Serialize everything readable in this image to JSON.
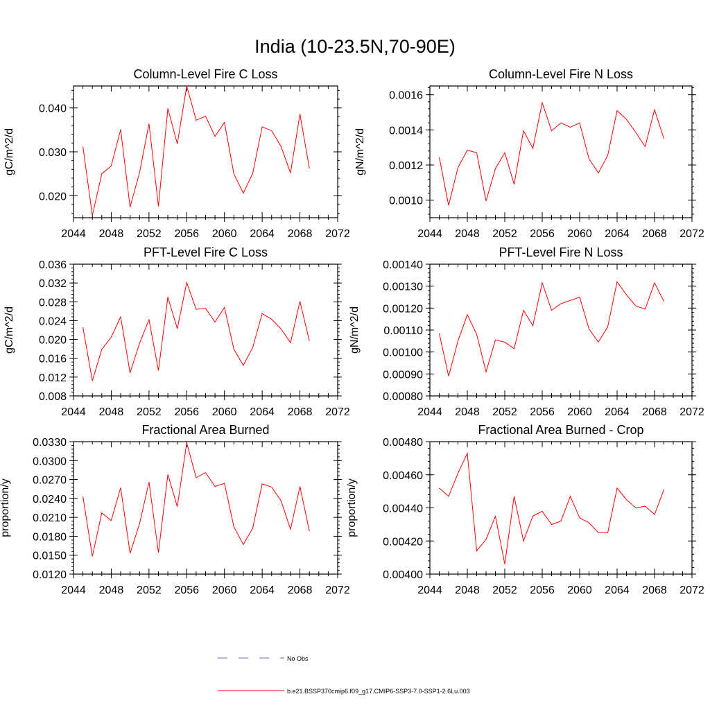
{
  "figure": {
    "title": "India (10-23.5N,70-90E)"
  },
  "legend": {
    "placement": "bottom-center",
    "entries": [
      {
        "label": "No Obs",
        "color": "#6a6ab0",
        "style": "dashed"
      },
      {
        "label": "b.e21.BSSP370cmip6.f09_g17.CMIP6-SSP3-7.0-SSP1-2.6Lu.003",
        "color": "#ff0000",
        "style": "solid"
      }
    ]
  },
  "chart_data": [
    {
      "type": "line",
      "title": "Column-Level Fire C Loss",
      "ylabel": "gC/m^2/d",
      "xlim": [
        2044,
        2072
      ],
      "ylim": [
        0.015,
        0.045
      ],
      "xticks": [
        "2044",
        "2048",
        "2052",
        "2056",
        "2060",
        "2064",
        "2068",
        "2072"
      ],
      "yticks": [
        0.02,
        0.03,
        0.04
      ],
      "ytick_labels": [
        "0.020",
        "0.030",
        "0.040"
      ],
      "series": [
        {
          "color": "#ff0000",
          "x": [
            2045,
            2046,
            2047,
            2048,
            2049,
            2050,
            2051,
            2052,
            2053,
            2054,
            2055,
            2056,
            2057,
            2058,
            2059,
            2060,
            2061,
            2062,
            2063,
            2064,
            2065,
            2066,
            2067,
            2068,
            2069
          ],
          "values": [
            0.0312,
            0.0155,
            0.025,
            0.0268,
            0.0351,
            0.0174,
            0.0253,
            0.0364,
            0.0176,
            0.0399,
            0.0318,
            0.045,
            0.0372,
            0.0381,
            0.0335,
            0.0367,
            0.025,
            0.0206,
            0.0251,
            0.0357,
            0.0348,
            0.0312,
            0.0252,
            0.0386,
            0.0262
          ]
        }
      ]
    },
    {
      "type": "line",
      "title": "Column-Level Fire N Loss",
      "ylabel": "gN/m^2/d",
      "xlim": [
        2044,
        2072
      ],
      "ylim": [
        0.0009,
        0.00165
      ],
      "xticks": [
        "2044",
        "2048",
        "2052",
        "2056",
        "2060",
        "2064",
        "2068",
        "2072"
      ],
      "yticks": [
        0.001,
        0.0012,
        0.0014,
        0.0016
      ],
      "ytick_labels": [
        "0.0010",
        "0.0012",
        "0.0014",
        "0.0016"
      ],
      "series": [
        {
          "color": "#ff0000",
          "x": [
            2045,
            2046,
            2047,
            2048,
            2049,
            2050,
            2051,
            2052,
            2053,
            2054,
            2055,
            2056,
            2057,
            2058,
            2059,
            2060,
            2061,
            2062,
            2063,
            2064,
            2065,
            2066,
            2067,
            2068,
            2069
          ],
          "values": [
            0.001245,
            0.00097,
            0.001185,
            0.001285,
            0.00127,
            0.000995,
            0.00118,
            0.00127,
            0.00109,
            0.001395,
            0.001295,
            0.001555,
            0.001395,
            0.00144,
            0.001415,
            0.00144,
            0.001235,
            0.001155,
            0.001255,
            0.00151,
            0.00146,
            0.001385,
            0.001305,
            0.001515,
            0.00135
          ]
        }
      ]
    },
    {
      "type": "line",
      "title": "PFT-Level Fire C Loss",
      "ylabel": "gC/m^2/d",
      "xlim": [
        2044,
        2072
      ],
      "ylim": [
        0.008,
        0.036
      ],
      "xticks": [
        "2044",
        "2048",
        "2052",
        "2056",
        "2060",
        "2064",
        "2068",
        "2072"
      ],
      "yticks": [
        0.008,
        0.012,
        0.016,
        0.02,
        0.024,
        0.028,
        0.032,
        0.036
      ],
      "ytick_labels": [
        "0.008",
        "0.012",
        "0.016",
        "0.020",
        "0.024",
        "0.028",
        "0.032",
        "0.036"
      ],
      "series": [
        {
          "color": "#ff0000",
          "x": [
            2045,
            2046,
            2047,
            2048,
            2049,
            2050,
            2051,
            2052,
            2053,
            2054,
            2055,
            2056,
            2057,
            2058,
            2059,
            2060,
            2061,
            2062,
            2063,
            2064,
            2065,
            2066,
            2067,
            2068,
            2069
          ],
          "values": [
            0.0226,
            0.0112,
            0.0179,
            0.0205,
            0.0248,
            0.0129,
            0.0192,
            0.0242,
            0.0134,
            0.029,
            0.0223,
            0.0321,
            0.0264,
            0.0266,
            0.0237,
            0.0268,
            0.0179,
            0.0145,
            0.0183,
            0.0255,
            0.0243,
            0.0222,
            0.0193,
            0.0281,
            0.0197
          ]
        }
      ]
    },
    {
      "type": "line",
      "title": "PFT-Level Fire N Loss",
      "ylabel": "gN/m^2/d",
      "xlim": [
        2044,
        2072
      ],
      "ylim": [
        0.0008,
        0.0014
      ],
      "xticks": [
        "2044",
        "2048",
        "2052",
        "2056",
        "2060",
        "2064",
        "2068",
        "2072"
      ],
      "yticks": [
        0.0008,
        0.0009,
        0.001,
        0.0011,
        0.0012,
        0.0013,
        0.0014
      ],
      "ytick_labels": [
        "0.00080",
        "0.00090",
        "0.00100",
        "0.00110",
        "0.00120",
        "0.00130",
        "0.00140"
      ],
      "series": [
        {
          "color": "#ff0000",
          "x": [
            2045,
            2046,
            2047,
            2048,
            2049,
            2050,
            2051,
            2052,
            2053,
            2054,
            2055,
            2056,
            2057,
            2058,
            2059,
            2060,
            2061,
            2062,
            2063,
            2064,
            2065,
            2066,
            2067,
            2068,
            2069
          ],
          "values": [
            0.001085,
            0.00089,
            0.00105,
            0.00117,
            0.00108,
            0.00091,
            0.001055,
            0.001045,
            0.001015,
            0.00119,
            0.00112,
            0.001315,
            0.00119,
            0.00122,
            0.001235,
            0.00125,
            0.001105,
            0.001045,
            0.001115,
            0.00132,
            0.00126,
            0.00121,
            0.001195,
            0.001315,
            0.00123
          ]
        }
      ]
    },
    {
      "type": "line",
      "title": "Fractional Area Burned",
      "ylabel": "proportion/y",
      "xlim": [
        2044,
        2072
      ],
      "ylim": [
        0.012,
        0.033
      ],
      "xticks": [
        "2044",
        "2048",
        "2052",
        "2056",
        "2060",
        "2064",
        "2068",
        "2072"
      ],
      "yticks": [
        0.012,
        0.015,
        0.018,
        0.021,
        0.024,
        0.027,
        0.03,
        0.033
      ],
      "ytick_labels": [
        "0.0120",
        "0.0150",
        "0.0180",
        "0.0210",
        "0.0240",
        "0.0270",
        "0.0300",
        "0.0330"
      ],
      "series": [
        {
          "color": "#ff0000",
          "x": [
            2045,
            2046,
            2047,
            2048,
            2049,
            2050,
            2051,
            2052,
            2053,
            2054,
            2055,
            2056,
            2057,
            2058,
            2059,
            2060,
            2061,
            2062,
            2063,
            2064,
            2065,
            2066,
            2067,
            2068,
            2069
          ],
          "values": [
            0.0243,
            0.0148,
            0.0217,
            0.0205,
            0.0257,
            0.0153,
            0.02,
            0.0266,
            0.0154,
            0.0278,
            0.0227,
            0.0328,
            0.0273,
            0.0281,
            0.0259,
            0.0264,
            0.0195,
            0.0167,
            0.0193,
            0.0263,
            0.0258,
            0.0236,
            0.0191,
            0.0259,
            0.0188
          ]
        }
      ]
    },
    {
      "type": "line",
      "title": "Fractional Area Burned - Crop",
      "ylabel": "proportion/y",
      "xlim": [
        2044,
        2072
      ],
      "ylim": [
        0.004,
        0.0048
      ],
      "xticks": [
        "2044",
        "2048",
        "2052",
        "2056",
        "2060",
        "2064",
        "2068",
        "2072"
      ],
      "yticks": [
        0.004,
        0.0042,
        0.0044,
        0.0046,
        0.0048
      ],
      "ytick_labels": [
        "0.00400",
        "0.00420",
        "0.00440",
        "0.00460",
        "0.00480"
      ],
      "series": [
        {
          "color": "#ff0000",
          "x": [
            2045,
            2046,
            2047,
            2048,
            2049,
            2050,
            2051,
            2052,
            2053,
            2054,
            2055,
            2056,
            2057,
            2058,
            2059,
            2060,
            2061,
            2062,
            2063,
            2064,
            2065,
            2066,
            2067,
            2068,
            2069
          ],
          "values": [
            0.00452,
            0.00447,
            0.00461,
            0.00473,
            0.00414,
            0.00421,
            0.00435,
            0.00406,
            0.00447,
            0.0042,
            0.00435,
            0.00438,
            0.0043,
            0.00432,
            0.00447,
            0.00434,
            0.00431,
            0.00425,
            0.00425,
            0.00452,
            0.00445,
            0.0044,
            0.00441,
            0.00436,
            0.00451
          ]
        }
      ]
    }
  ]
}
